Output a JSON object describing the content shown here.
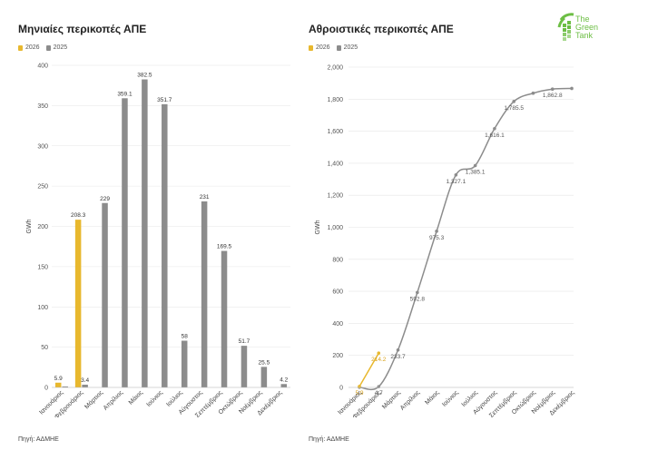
{
  "colors": {
    "y2026": "#E8B82E",
    "y2025": "#8C8C8C",
    "grid": "#E6E6E6",
    "logo_green": "#6DBE45"
  },
  "logo": {
    "line1": "The",
    "line2": "Green",
    "line3": "Tank"
  },
  "chart_data": [
    {
      "type": "bar",
      "title": "Μηνιαίες περικοπές ΑΠΕ",
      "ylabel": "GWh",
      "ylim": [
        0,
        400
      ],
      "yticks": [
        "0",
        "50",
        "100",
        "150",
        "200",
        "250",
        "300",
        "350",
        "400"
      ],
      "categories": [
        "Ιανουάριος",
        "Φεβρουάριος",
        "Μάρτιος",
        "Απρίλιος",
        "Μάιος",
        "Ιούνιος",
        "Ιούλιος",
        "Αύγουστος",
        "Σεπτέμβριος",
        "Οκτώβριος",
        "Νοέμβριος",
        "Δεκέμβριος"
      ],
      "series": [
        {
          "name": "2026",
          "values": [
            5.9,
            208.3,
            null,
            null,
            null,
            null,
            null,
            null,
            null,
            null,
            null,
            null
          ],
          "labels": [
            "5.9",
            "208.3",
            "",
            "",
            "",
            "",
            "",
            "",
            "",
            "",
            "",
            ""
          ]
        },
        {
          "name": "2025",
          "values": [
            1.2,
            3.4,
            229,
            359.1,
            382.5,
            351.7,
            58,
            231,
            169.5,
            51.7,
            25.5,
            4.2
          ],
          "labels": [
            "",
            "3.4",
            "229",
            "359.1",
            "382.5",
            "351.7",
            "58",
            "231",
            "169.5",
            "51.7",
            "25.5",
            "4.2"
          ]
        }
      ],
      "source": "Πηγή: ΑΔΜΗΕ"
    },
    {
      "type": "line",
      "title": "Αθροιστικές περικοπές ΑΠΕ",
      "ylabel": "GWh",
      "ylim": [
        0,
        2000
      ],
      "yticks": [
        "0",
        "200",
        "400",
        "600",
        "800",
        "1,000",
        "1,200",
        "1,400",
        "1,600",
        "1,800",
        "2,000"
      ],
      "categories": [
        "Ιανουάριος",
        "Φεβρουάριος",
        "Μάρτιος",
        "Απρίλιος",
        "Μάιος",
        "Ιούνιος",
        "Ιούλιος",
        "Αύγουστος",
        "Σεπτέμβριος",
        "Οκτώβριος",
        "Νοέμβριος",
        "Δεκέμβριος"
      ],
      "series": [
        {
          "name": "2026",
          "values": [
            5.9,
            214.2,
            null,
            null,
            null,
            null,
            null,
            null,
            null,
            null,
            null,
            null
          ],
          "labels": [
            "5.9",
            "214.2",
            "",
            "",
            "",
            "",
            "",
            "",
            "",
            "",
            "",
            ""
          ]
        },
        {
          "name": "2025",
          "values": [
            1.2,
            4.7,
            233.7,
            592.8,
            975.3,
            1327.1,
            1385.1,
            1616.1,
            1785.5,
            1837.2,
            1862.8,
            1867.0
          ],
          "labels": [
            "",
            "4.7",
            "233.7",
            "592.8",
            "975.3",
            "1,327.1",
            "1,385.1",
            "1,616.1",
            "1,785.5",
            "",
            "1,862.8",
            ""
          ]
        }
      ],
      "source": "Πηγή: ΑΔΜΗΕ"
    }
  ]
}
